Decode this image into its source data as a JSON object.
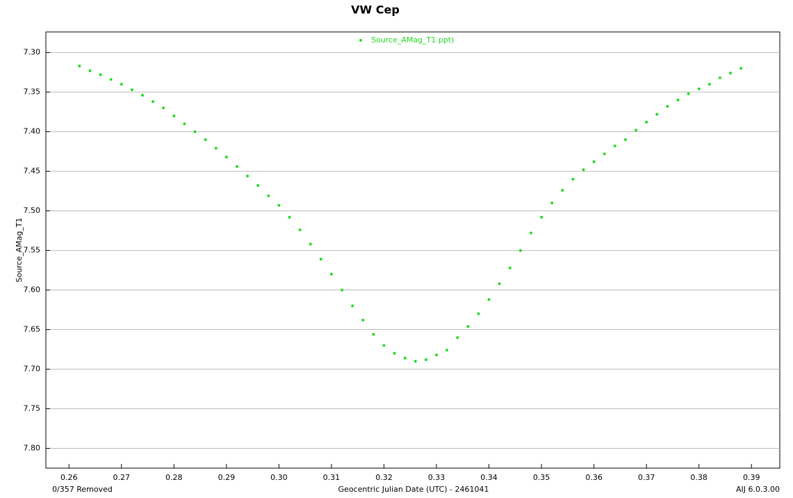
{
  "chart_data": {
    "type": "scatter",
    "title": "VW Cep",
    "x_label": "Geocentric Julian Date (UTC) - 2461041",
    "y_label": "Source_AMag_T1",
    "footer_left": "0/357 Removed",
    "footer_right": "AIJ 6.0.3.00",
    "xlim": [
      0.2556,
      0.3954
    ],
    "ylim": [
      7.274,
      7.825
    ],
    "y_inverted": true,
    "grid": true,
    "legend": "top",
    "xticks": [
      {
        "value": 0.26,
        "label": "0.26"
      },
      {
        "value": 0.27,
        "label": "0.27"
      },
      {
        "value": 0.28,
        "label": "0.28"
      },
      {
        "value": 0.29,
        "label": "0.29"
      },
      {
        "value": 0.3,
        "label": "0.30"
      },
      {
        "value": 0.31,
        "label": "0.31"
      },
      {
        "value": 0.32,
        "label": "0.32"
      },
      {
        "value": 0.33,
        "label": "0.33"
      },
      {
        "value": 0.34,
        "label": "0.34"
      },
      {
        "value": 0.35,
        "label": "0.35"
      },
      {
        "value": 0.36,
        "label": "0.36"
      },
      {
        "value": 0.37,
        "label": "0.37"
      },
      {
        "value": 0.38,
        "label": "0.38"
      },
      {
        "value": 0.39,
        "label": "0.39"
      }
    ],
    "yticks": [
      {
        "value": 7.3,
        "label": "7.30"
      },
      {
        "value": 7.35,
        "label": "7.35"
      },
      {
        "value": 7.4,
        "label": "7.40"
      },
      {
        "value": 7.45,
        "label": "7.45"
      },
      {
        "value": 7.5,
        "label": "7.50"
      },
      {
        "value": 7.55,
        "label": "7.55"
      },
      {
        "value": 7.6,
        "label": "7.60"
      },
      {
        "value": 7.65,
        "label": "7.65"
      },
      {
        "value": 7.7,
        "label": "7.70"
      },
      {
        "value": 7.75,
        "label": "7.75"
      },
      {
        "value": 7.8,
        "label": "7.80"
      }
    ],
    "series": [
      {
        "name": "Source_AMag_T1 ppt)",
        "color": "#22dd22",
        "x": [
          0.262,
          0.264,
          0.266,
          0.268,
          0.27,
          0.272,
          0.274,
          0.276,
          0.278,
          0.28,
          0.282,
          0.284,
          0.286,
          0.288,
          0.29,
          0.292,
          0.294,
          0.296,
          0.298,
          0.3,
          0.302,
          0.304,
          0.306,
          0.308,
          0.31,
          0.312,
          0.314,
          0.316,
          0.318,
          0.32,
          0.322,
          0.324,
          0.326,
          0.328,
          0.33,
          0.332,
          0.334,
          0.336,
          0.338,
          0.34,
          0.342,
          0.344,
          0.346,
          0.348,
          0.35,
          0.352,
          0.354,
          0.356,
          0.358,
          0.36,
          0.362,
          0.364,
          0.366,
          0.368,
          0.37,
          0.372,
          0.374,
          0.376,
          0.378,
          0.38,
          0.382,
          0.384,
          0.386,
          0.388
        ],
        "values": [
          7.317,
          7.323,
          7.328,
          7.334,
          7.34,
          7.347,
          7.354,
          7.362,
          7.37,
          7.38,
          7.39,
          7.4,
          7.41,
          7.421,
          7.432,
          7.444,
          7.456,
          7.468,
          7.481,
          7.493,
          7.508,
          7.524,
          7.542,
          7.561,
          7.58,
          7.6,
          7.62,
          7.638,
          7.656,
          7.67,
          7.68,
          7.686,
          7.69,
          7.688,
          7.682,
          7.676,
          7.66,
          7.646,
          7.63,
          7.612,
          7.592,
          7.572,
          7.55,
          7.528,
          7.508,
          7.49,
          7.474,
          7.46,
          7.448,
          7.438,
          7.428,
          7.418,
          7.41,
          7.398,
          7.388,
          7.378,
          7.368,
          7.36,
          7.352,
          7.346,
          7.34,
          7.332,
          7.326,
          7.32
        ]
      }
    ]
  }
}
